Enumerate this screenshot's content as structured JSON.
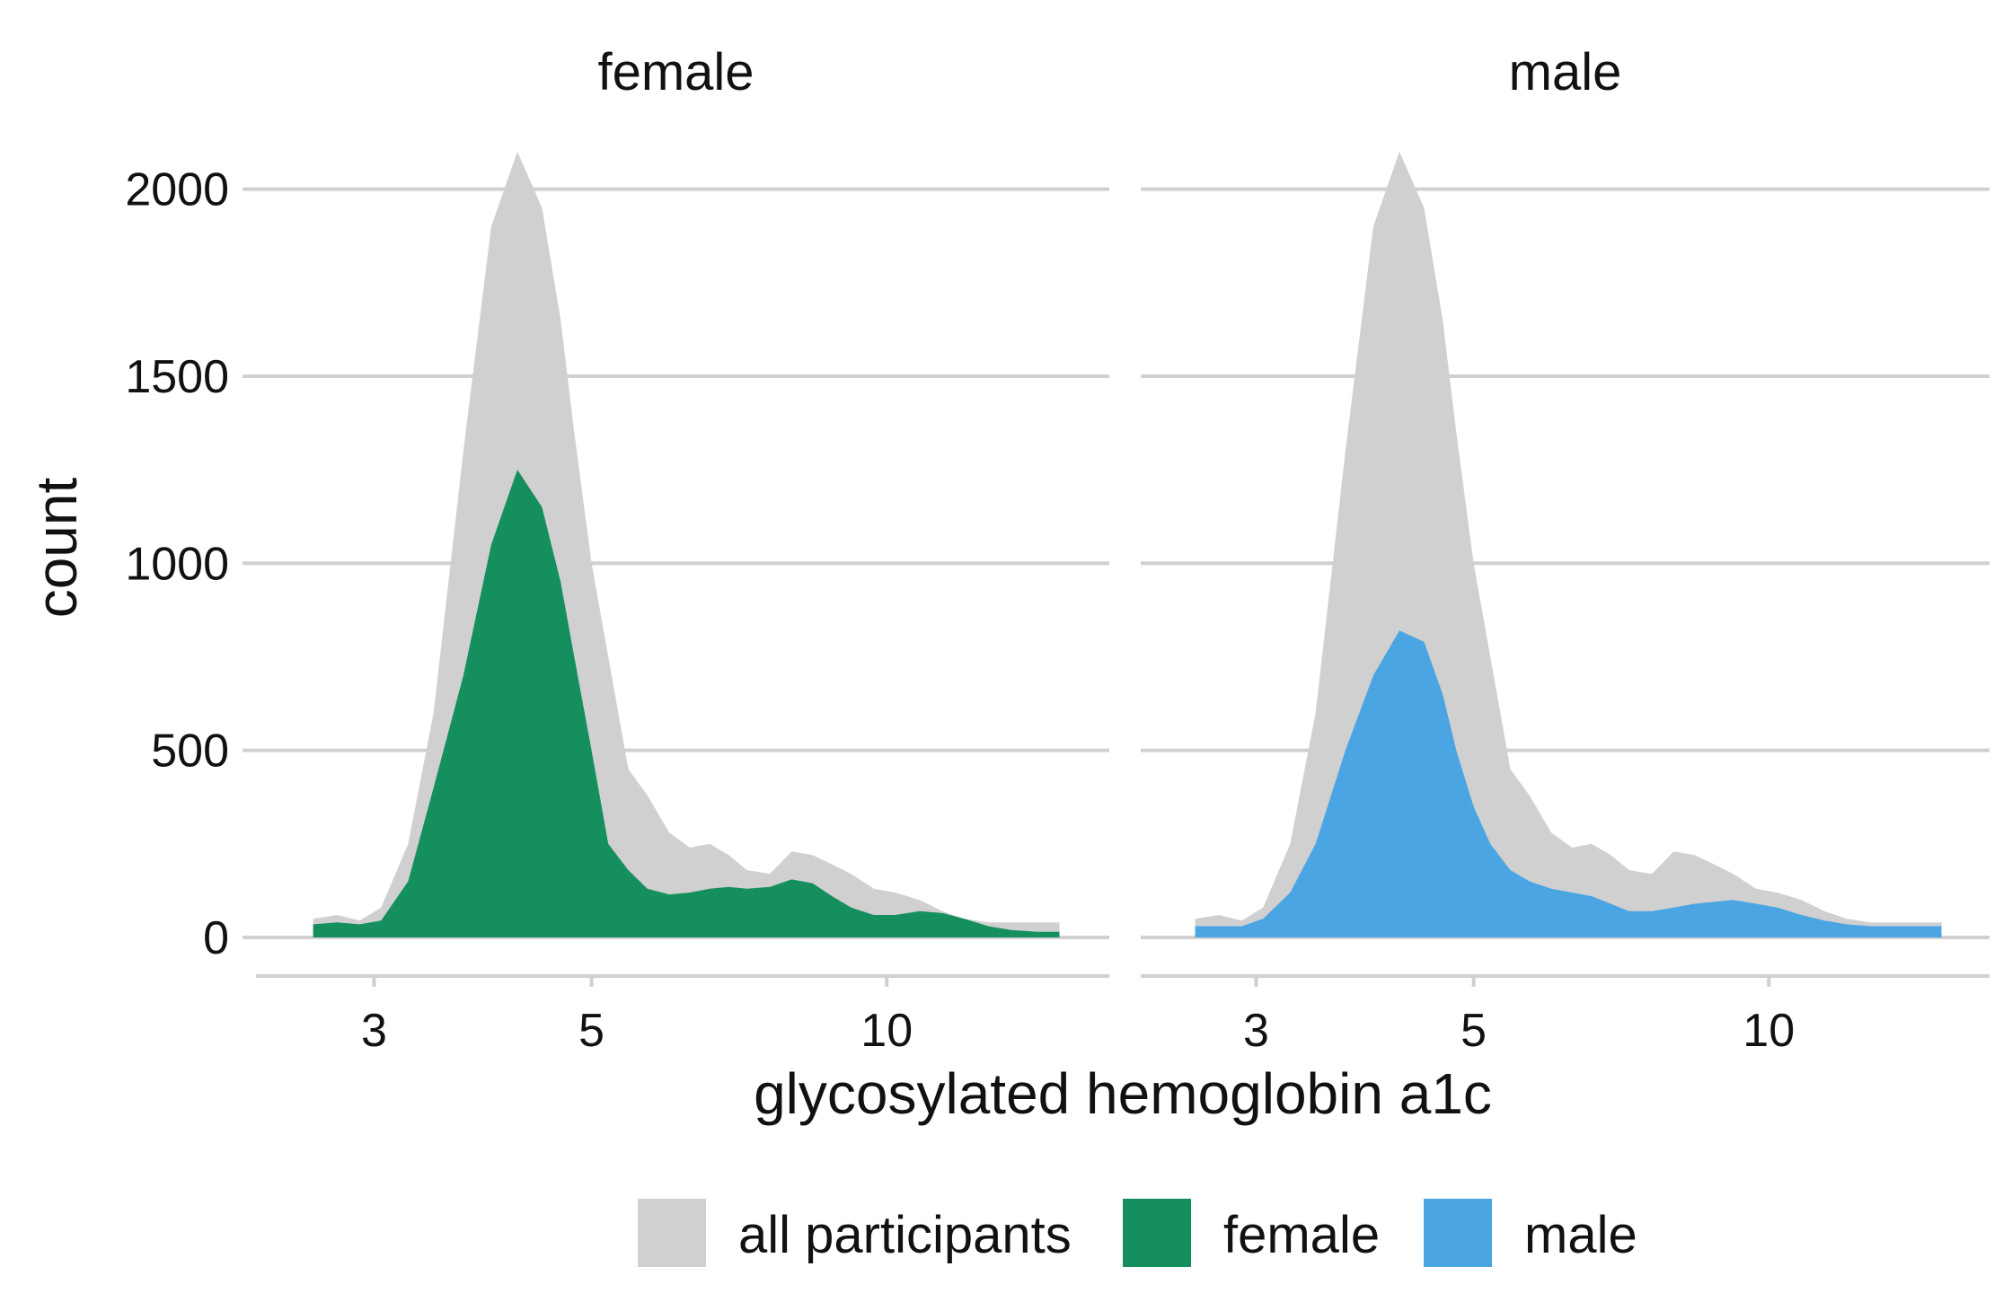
{
  "chart_data": {
    "type": "area",
    "xlabel": "glycosylated hemoglobin a1c",
    "ylabel": "count",
    "x_scale": "log",
    "xlim": [
      2.5,
      15.5
    ],
    "ylim": [
      -100,
      2150
    ],
    "x_ticks": [
      3,
      5,
      10
    ],
    "x_tick_labels": [
      "3",
      "5",
      "10"
    ],
    "y_ticks": [
      0,
      500,
      1000,
      1500,
      2000
    ],
    "y_tick_labels": [
      "0",
      "500",
      "1000",
      "1500",
      "2000"
    ],
    "grid": "horizontal",
    "legend_position": "bottom",
    "colors": {
      "all participants": "#d0d0d0",
      "female": "#168f5f",
      "male": "#4aa5e2"
    },
    "legend": [
      {
        "label": "all participants",
        "color": "#d0d0d0"
      },
      {
        "label": "female",
        "color": "#168f5f"
      },
      {
        "label": "male",
        "color": "#4aa5e2"
      }
    ],
    "x": [
      2.6,
      2.75,
      2.9,
      3.05,
      3.25,
      3.45,
      3.7,
      3.95,
      4.2,
      4.45,
      4.65,
      4.8,
      5.0,
      5.2,
      5.45,
      5.7,
      6.0,
      6.3,
      6.6,
      6.9,
      7.2,
      7.6,
      8.0,
      8.4,
      8.8,
      9.2,
      9.7,
      10.2,
      10.8,
      11.4,
      12.0,
      12.7,
      13.4,
      14.2,
      15.0
    ],
    "facets": [
      {
        "title": "female",
        "series": [
          {
            "name": "all participants",
            "values": [
              50,
              60,
              45,
              80,
              250,
              600,
              1300,
              1900,
              2100,
              1950,
              1650,
              1350,
              1000,
              750,
              450,
              380,
              280,
              240,
              250,
              220,
              180,
              170,
              230,
              220,
              195,
              170,
              130,
              120,
              100,
              70,
              50,
              40,
              40,
              40,
              40
            ]
          },
          {
            "name": "female",
            "values": [
              35,
              40,
              35,
              45,
              150,
              400,
              700,
              1050,
              1250,
              1150,
              950,
              750,
              500,
              250,
              180,
              130,
              115,
              120,
              130,
              135,
              130,
              135,
              155,
              145,
              110,
              80,
              60,
              60,
              70,
              65,
              50,
              30,
              20,
              15,
              15
            ]
          }
        ]
      },
      {
        "title": "male",
        "series": [
          {
            "name": "all participants",
            "values": [
              50,
              60,
              45,
              80,
              250,
              600,
              1300,
              1900,
              2100,
              1950,
              1650,
              1350,
              1000,
              750,
              450,
              380,
              280,
              240,
              250,
              220,
              180,
              170,
              230,
              220,
              195,
              170,
              130,
              120,
              100,
              70,
              50,
              40,
              40,
              40,
              40
            ]
          },
          {
            "name": "male",
            "values": [
              30,
              30,
              30,
              50,
              120,
              250,
              500,
              700,
              820,
              790,
              650,
              500,
              350,
              250,
              180,
              150,
              130,
              120,
              110,
              90,
              70,
              70,
              80,
              90,
              95,
              100,
              90,
              80,
              60,
              45,
              35,
              30,
              30,
              30,
              30
            ]
          }
        ]
      }
    ]
  }
}
